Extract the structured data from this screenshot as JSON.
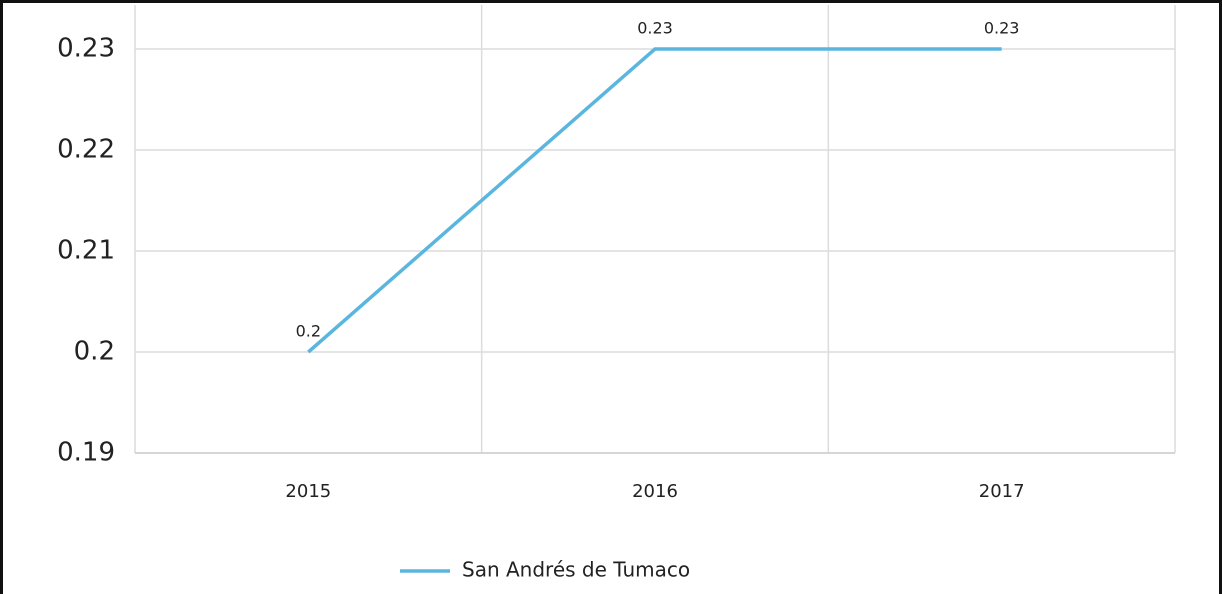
{
  "chart_data": {
    "type": "line",
    "categories": [
      "2015",
      "2016",
      "2017"
    ],
    "series": [
      {
        "name": "San Andrés de Tumaco",
        "color": "#5ab6de",
        "values": [
          0.2,
          0.23,
          0.23
        ]
      }
    ],
    "ylim": [
      0.19,
      0.23
    ],
    "yticks": [
      0.19,
      0.2,
      0.21,
      0.22,
      0.23
    ],
    "grid": true,
    "legend": "bottom"
  }
}
